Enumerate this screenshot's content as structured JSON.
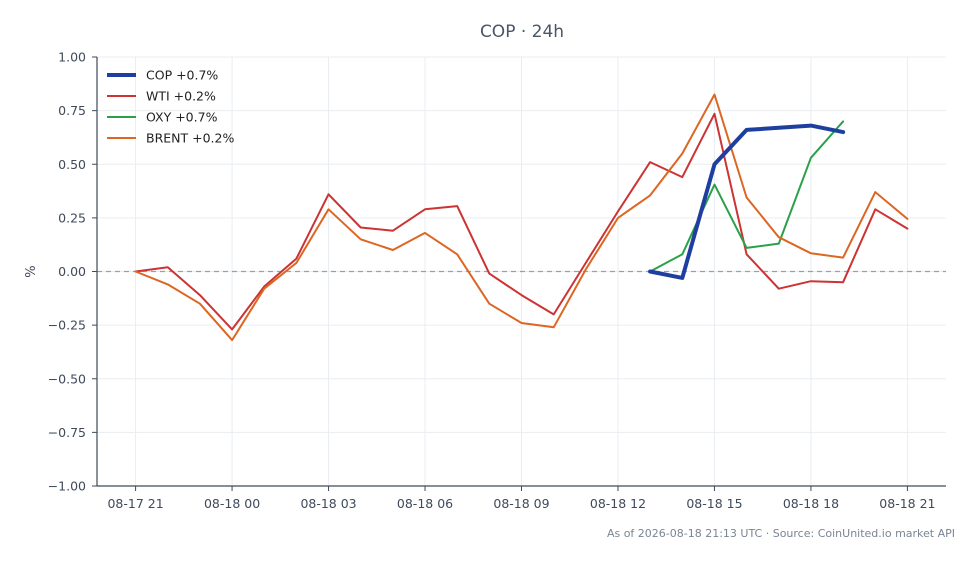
{
  "chart_data": {
    "type": "line",
    "title": "COP · 24h",
    "ylabel": "%",
    "xlabel": "",
    "ylim": [
      -1.0,
      1.0
    ],
    "yticks": [
      "1.00",
      "0.75",
      "0.50",
      "0.25",
      "0.00",
      "−0.25",
      "−0.50",
      "−0.75",
      "−1.00"
    ],
    "ytick_values": [
      1.0,
      0.75,
      0.5,
      0.25,
      0.0,
      -0.25,
      -0.5,
      -0.75,
      -1.0
    ],
    "xticks": [
      "08-17 21",
      "08-18 00",
      "08-18 03",
      "08-18 06",
      "08-18 09",
      "08-18 12",
      "08-18 15",
      "08-18 18",
      "08-18 21"
    ],
    "xtick_hours": [
      0,
      3,
      6,
      9,
      12,
      15,
      18,
      21,
      24
    ],
    "xlim_hours": [
      -1.2,
      25.2
    ],
    "grid": true,
    "legend_position": "top-left",
    "zero_line": true,
    "series": [
      {
        "name": "COP +0.7%",
        "color": "#1f3fa0",
        "width": 4,
        "x_hours": [
          16,
          17,
          18,
          19,
          20,
          21,
          22
        ],
        "values": [
          0.0,
          -0.03,
          0.5,
          0.66,
          0.67,
          0.68,
          0.65
        ]
      },
      {
        "name": "WTI +0.2%",
        "color": "#cc3333",
        "width": 2,
        "x_hours": [
          0,
          1,
          2,
          3,
          4,
          5,
          6,
          7,
          8,
          9,
          10,
          11,
          12,
          13,
          14,
          15,
          16,
          17,
          18,
          19,
          20,
          21,
          22,
          23,
          24
        ],
        "values": [
          0.0,
          0.02,
          -0.11,
          -0.27,
          -0.07,
          0.06,
          0.36,
          0.205,
          0.19,
          0.29,
          0.305,
          -0.01,
          -0.11,
          -0.2,
          0.04,
          0.28,
          0.51,
          0.44,
          0.735,
          0.08,
          -0.08,
          -0.045,
          -0.05,
          0.29,
          0.2
        ]
      },
      {
        "name": "OXY +0.7%",
        "color": "#2aa048",
        "width": 2,
        "x_hours": [
          16,
          17,
          18,
          19,
          20,
          21,
          22
        ],
        "values": [
          0.0,
          0.08,
          0.405,
          0.11,
          0.13,
          0.53,
          0.7
        ]
      },
      {
        "name": "BRENT +0.2%",
        "color": "#dd6622",
        "width": 2,
        "x_hours": [
          0,
          1,
          2,
          3,
          4,
          5,
          6,
          7,
          8,
          9,
          10,
          11,
          12,
          13,
          14,
          15,
          16,
          17,
          18,
          19,
          20,
          21,
          22,
          23,
          24
        ],
        "values": [
          0.0,
          -0.06,
          -0.15,
          -0.32,
          -0.08,
          0.04,
          0.29,
          0.15,
          0.1,
          0.18,
          0.08,
          -0.15,
          -0.24,
          -0.26,
          0.01,
          0.25,
          0.355,
          0.55,
          0.825,
          0.345,
          0.16,
          0.085,
          0.065,
          0.37,
          0.245
        ]
      }
    ]
  },
  "footer": {
    "source": "As of 2026-08-18 21:13 UTC · Source: CoinUnited.io market API"
  }
}
